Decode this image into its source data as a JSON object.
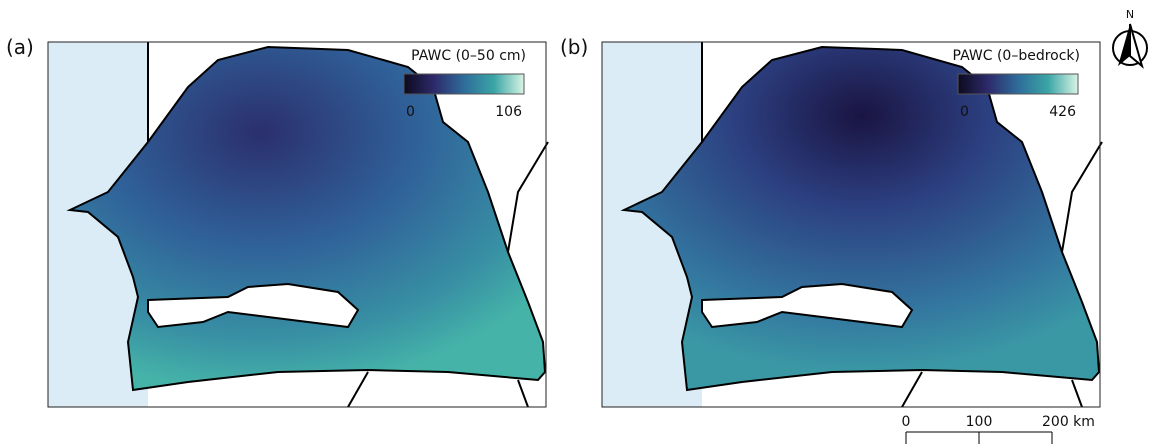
{
  "panels": [
    {
      "label": "(a)",
      "legend_title": "PAWC (0–50 cm)",
      "colorbar": {
        "min": 0,
        "max": 106
      }
    },
    {
      "label": "(b)",
      "legend_title": "PAWC (0–bedrock)",
      "colorbar": {
        "min": 0,
        "max": 426
      }
    }
  ],
  "north_arrow": "N",
  "scale_bar": {
    "ticks": [
      0,
      100,
      {
        "value": 200,
        "label": "200 km"
      }
    ]
  }
}
